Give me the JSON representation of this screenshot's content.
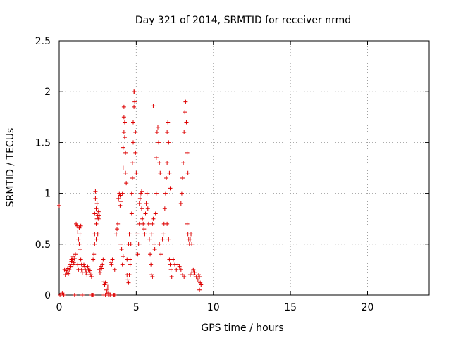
{
  "chart_data": {
    "type": "scatter",
    "title": "Day 321 of 2014, SRMTID for receiver nrmd",
    "xlabel": "GPS time / hours",
    "ylabel": "SRMTID / TECUs",
    "xlim": [
      0,
      24
    ],
    "ylim": [
      0,
      2.5
    ],
    "xticks": [
      0,
      5,
      10,
      15,
      20
    ],
    "xtick_labels": [
      "0",
      "5",
      "10",
      "15",
      "20"
    ],
    "yticks": [
      0,
      0.5,
      1,
      1.5,
      2,
      2.5
    ],
    "ytick_labels": [
      "0",
      "0.5",
      "1",
      "1.5",
      "2",
      "2.5"
    ],
    "grid": true,
    "marker": "+",
    "marker_color": "#dd0000",
    "series": [
      {
        "name": "SRMTID",
        "points": [
          [
            0.0,
            0.88
          ],
          [
            0.05,
            0.0
          ],
          [
            0.2,
            0.02
          ],
          [
            0.3,
            0.0
          ],
          [
            0.35,
            0.25
          ],
          [
            0.4,
            0.2
          ],
          [
            0.45,
            0.24
          ],
          [
            0.5,
            0.22
          ],
          [
            0.55,
            0.26
          ],
          [
            0.6,
            0.21
          ],
          [
            0.65,
            0.25
          ],
          [
            0.7,
            0.3
          ],
          [
            0.75,
            0.28
          ],
          [
            0.8,
            0.33
          ],
          [
            0.85,
            0.35
          ],
          [
            0.9,
            0.38
          ],
          [
            0.95,
            0.32
          ],
          [
            1.0,
            0.36
          ],
          [
            1.05,
            0.4
          ],
          [
            0.8,
            0.35
          ],
          [
            0.9,
            0.3
          ],
          [
            1.1,
            0.7
          ],
          [
            1.15,
            0.68
          ],
          [
            1.2,
            0.62
          ],
          [
            1.25,
            0.55
          ],
          [
            1.3,
            0.5
          ],
          [
            1.3,
            0.66
          ],
          [
            1.35,
            0.45
          ],
          [
            1.35,
            0.6
          ],
          [
            1.4,
            0.68
          ],
          [
            1.4,
            0.35
          ],
          [
            1.45,
            0.3
          ],
          [
            1.45,
            0.25
          ],
          [
            1.5,
            0.22
          ],
          [
            1.2,
            0.3
          ],
          [
            1.25,
            0.25
          ],
          [
            1.6,
            0.3
          ],
          [
            1.65,
            0.28
          ],
          [
            1.7,
            0.25
          ],
          [
            1.75,
            0.22
          ],
          [
            1.8,
            0.2
          ],
          [
            1.85,
            0.28
          ],
          [
            1.9,
            0.25
          ],
          [
            1.95,
            0.22
          ],
          [
            2.0,
            0.24
          ],
          [
            2.05,
            0.2
          ],
          [
            2.1,
            0.18
          ],
          [
            1.0,
            0.0
          ],
          [
            1.5,
            0.0
          ],
          [
            2.1,
            0.0
          ],
          [
            2.15,
            0.0
          ],
          [
            2.2,
            0.0
          ],
          [
            2.2,
            0.35
          ],
          [
            2.25,
            0.4
          ],
          [
            2.3,
            0.6
          ],
          [
            2.3,
            0.8
          ],
          [
            2.35,
            0.95
          ],
          [
            2.35,
            1.02
          ],
          [
            2.4,
            0.85
          ],
          [
            2.4,
            0.7
          ],
          [
            2.45,
            0.75
          ],
          [
            2.45,
            0.9
          ],
          [
            2.5,
            0.78
          ],
          [
            2.5,
            0.6
          ],
          [
            2.55,
            0.82
          ],
          [
            2.55,
            0.75
          ],
          [
            2.6,
            0.78
          ],
          [
            2.3,
            0.5
          ],
          [
            2.4,
            0.55
          ],
          [
            2.6,
            0.25
          ],
          [
            2.65,
            0.22
          ],
          [
            2.7,
            0.28
          ],
          [
            2.75,
            0.26
          ],
          [
            2.8,
            0.3
          ],
          [
            2.85,
            0.35
          ],
          [
            2.9,
            0.13
          ],
          [
            2.95,
            0.1
          ],
          [
            3.0,
            0.12
          ],
          [
            3.05,
            0.05
          ],
          [
            3.1,
            0.03
          ],
          [
            3.15,
            0.08
          ],
          [
            3.2,
            0.02
          ],
          [
            3.2,
            0.0
          ],
          [
            3.3,
            0.0
          ],
          [
            2.9,
            0.0
          ],
          [
            3.0,
            0.0
          ],
          [
            3.35,
            0.32
          ],
          [
            3.4,
            0.3
          ],
          [
            3.45,
            0.35
          ],
          [
            3.5,
            0.0
          ],
          [
            3.55,
            0.0
          ],
          [
            3.6,
            0.25
          ],
          [
            3.6,
            0.0
          ],
          [
            3.7,
            0.6
          ],
          [
            3.75,
            0.65
          ],
          [
            3.8,
            0.7
          ],
          [
            3.85,
            0.95
          ],
          [
            3.9,
            1.0
          ],
          [
            3.95,
            0.98
          ],
          [
            3.95,
            0.88
          ],
          [
            4.0,
            0.92
          ],
          [
            4.0,
            0.5
          ],
          [
            4.05,
            0.45
          ],
          [
            4.1,
            0.3
          ],
          [
            4.15,
            0.38
          ],
          [
            4.1,
            1.0
          ],
          [
            4.15,
            1.25
          ],
          [
            4.15,
            1.45
          ],
          [
            4.2,
            1.6
          ],
          [
            4.2,
            1.75
          ],
          [
            4.2,
            1.85
          ],
          [
            4.25,
            1.7
          ],
          [
            4.25,
            1.55
          ],
          [
            4.3,
            1.4
          ],
          [
            4.3,
            1.2
          ],
          [
            4.35,
            1.1
          ],
          [
            4.4,
            0.35
          ],
          [
            4.4,
            0.2
          ],
          [
            4.45,
            0.15
          ],
          [
            4.5,
            0.12
          ],
          [
            4.55,
            0.2
          ],
          [
            4.6,
            0.3
          ],
          [
            4.6,
            0.35
          ],
          [
            4.5,
            0.5
          ],
          [
            4.55,
            0.6
          ],
          [
            4.6,
            0.5
          ],
          [
            4.65,
            0.5
          ],
          [
            4.7,
            0.8
          ],
          [
            4.7,
            1.0
          ],
          [
            4.75,
            1.15
          ],
          [
            4.75,
            1.3
          ],
          [
            4.8,
            1.5
          ],
          [
            4.8,
            1.7
          ],
          [
            4.85,
            1.85
          ],
          [
            4.85,
            2.0
          ],
          [
            4.9,
            2.0
          ],
          [
            4.9,
            1.9
          ],
          [
            4.95,
            1.6
          ],
          [
            4.95,
            1.4
          ],
          [
            5.0,
            1.2
          ],
          [
            5.05,
            0.6
          ],
          [
            5.1,
            0.4
          ],
          [
            5.15,
            0.5
          ],
          [
            5.2,
            0.7
          ],
          [
            5.2,
            0.9
          ],
          [
            5.25,
            0.95
          ],
          [
            5.3,
            1.0
          ],
          [
            5.35,
            1.02
          ],
          [
            5.35,
            0.85
          ],
          [
            5.4,
            0.75
          ],
          [
            5.45,
            0.7
          ],
          [
            5.5,
            0.65
          ],
          [
            5.55,
            0.6
          ],
          [
            5.6,
            0.8
          ],
          [
            5.65,
            0.9
          ],
          [
            5.7,
            1.0
          ],
          [
            5.75,
            0.85
          ],
          [
            5.8,
            0.7
          ],
          [
            5.85,
            0.55
          ],
          [
            5.9,
            0.4
          ],
          [
            5.95,
            0.3
          ],
          [
            6.0,
            0.2
          ],
          [
            6.05,
            0.18
          ],
          [
            6.0,
            0.6
          ],
          [
            6.05,
            0.7
          ],
          [
            6.1,
            1.86
          ],
          [
            6.1,
            0.75
          ],
          [
            6.15,
            0.5
          ],
          [
            6.2,
            0.45
          ],
          [
            6.25,
            0.8
          ],
          [
            6.3,
            1.0
          ],
          [
            6.3,
            1.35
          ],
          [
            6.35,
            1.6
          ],
          [
            6.4,
            1.65
          ],
          [
            6.45,
            1.5
          ],
          [
            6.5,
            1.3
          ],
          [
            6.55,
            1.2
          ],
          [
            6.5,
            0.5
          ],
          [
            6.6,
            0.4
          ],
          [
            6.7,
            0.55
          ],
          [
            6.75,
            0.6
          ],
          [
            6.8,
            0.7
          ],
          [
            6.85,
            0.85
          ],
          [
            6.9,
            1.0
          ],
          [
            6.95,
            1.15
          ],
          [
            7.0,
            1.3
          ],
          [
            7.0,
            1.6
          ],
          [
            7.05,
            1.7
          ],
          [
            7.1,
            1.5
          ],
          [
            7.15,
            1.2
          ],
          [
            7.2,
            1.05
          ],
          [
            7.0,
            0.7
          ],
          [
            7.1,
            0.55
          ],
          [
            7.15,
            0.35
          ],
          [
            7.2,
            0.3
          ],
          [
            7.25,
            0.25
          ],
          [
            7.3,
            0.18
          ],
          [
            7.4,
            0.35
          ],
          [
            7.5,
            0.3
          ],
          [
            7.6,
            0.25
          ],
          [
            7.7,
            0.3
          ],
          [
            7.8,
            0.28
          ],
          [
            7.9,
            0.25
          ],
          [
            8.0,
            0.2
          ],
          [
            8.1,
            0.18
          ],
          [
            7.9,
            0.9
          ],
          [
            7.95,
            1.0
          ],
          [
            8.0,
            1.15
          ],
          [
            8.05,
            1.3
          ],
          [
            8.1,
            1.6
          ],
          [
            8.15,
            1.8
          ],
          [
            8.2,
            1.9
          ],
          [
            8.25,
            1.7
          ],
          [
            8.3,
            1.4
          ],
          [
            8.35,
            1.2
          ],
          [
            8.3,
            0.7
          ],
          [
            8.35,
            0.6
          ],
          [
            8.4,
            0.55
          ],
          [
            8.45,
            0.5
          ],
          [
            8.5,
            0.55
          ],
          [
            8.55,
            0.6
          ],
          [
            8.6,
            0.5
          ],
          [
            8.5,
            0.2
          ],
          [
            8.6,
            0.22
          ],
          [
            8.7,
            0.25
          ],
          [
            8.75,
            0.2
          ],
          [
            8.8,
            0.22
          ],
          [
            8.9,
            0.18
          ],
          [
            9.0,
            0.15
          ],
          [
            9.05,
            0.2
          ],
          [
            9.1,
            0.18
          ],
          [
            9.15,
            0.12
          ],
          [
            9.2,
            0.1
          ],
          [
            9.1,
            0.05
          ]
        ]
      }
    ]
  }
}
